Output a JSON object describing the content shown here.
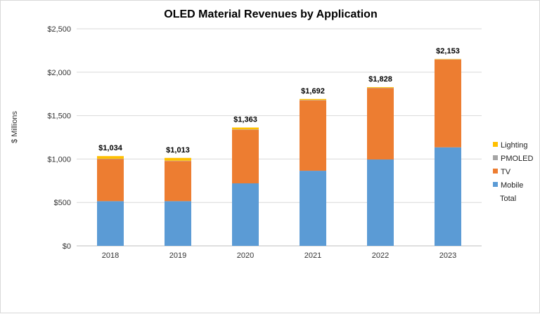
{
  "chart_data": {
    "type": "bar",
    "stacked": true,
    "title": "OLED Material Revenues by Application",
    "xlabel": "",
    "ylabel": "$ Millions",
    "categories": [
      "2018",
      "2019",
      "2020",
      "2021",
      "2022",
      "2023"
    ],
    "ylim": [
      0,
      2500
    ],
    "yticks": [
      0,
      500,
      1000,
      1500,
      2000,
      2500
    ],
    "ytick_labels": [
      "$0",
      "$500",
      "$1,000",
      "$1,500",
      "$2,000",
      "$2,500"
    ],
    "grid": true,
    "legend_position": "right",
    "series": [
      {
        "name": "Mobile",
        "color": "#5b9bd5",
        "values": [
          515,
          515,
          720,
          865,
          995,
          1135
        ]
      },
      {
        "name": "TV",
        "color": "#ed7d31",
        "values": [
          485,
          462,
          618,
          812,
          823,
          1011
        ]
      },
      {
        "name": "PMOLED",
        "color": "#a5a5a5",
        "values": [
          4,
          4,
          4,
          4,
          3,
          3
        ]
      },
      {
        "name": "Lighting",
        "color": "#ffc000",
        "values": [
          30,
          32,
          21,
          11,
          7,
          4
        ]
      }
    ],
    "totals": [
      1034,
      1013,
      1363,
      1692,
      1828,
      2153
    ],
    "total_labels": [
      "$1,034",
      "$1,013",
      "$1,363",
      "$1,692",
      "$1,828",
      "$2,153"
    ],
    "legend": [
      {
        "name": "Lighting",
        "color": "#ffc000",
        "marker": true
      },
      {
        "name": "PMOLED",
        "color": "#a5a5a5",
        "marker": true
      },
      {
        "name": "TV",
        "color": "#ed7d31",
        "marker": true
      },
      {
        "name": "Mobile",
        "color": "#5b9bd5",
        "marker": true
      },
      {
        "name": "Total",
        "color": "",
        "marker": false
      }
    ]
  }
}
